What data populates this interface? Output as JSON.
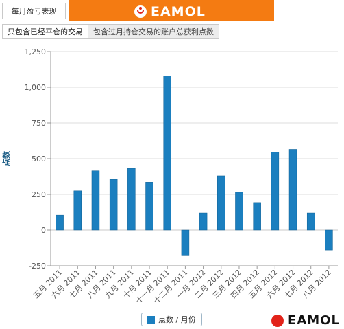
{
  "header": {
    "title": "每月盈亏表现",
    "brand": "EAMOL"
  },
  "tabs": [
    {
      "label": "只包含已经平仓的交易"
    },
    {
      "label": "包含过月持仓交易的账户总获利点数"
    }
  ],
  "footer": {
    "brand": "EAMOL"
  },
  "colors": {
    "bar": "#1b7fbf",
    "orange": "#f47b12",
    "logo_red": "#e2231a"
  },
  "chart_data": {
    "type": "bar",
    "ylabel": "点数",
    "ylim": [
      -250,
      1250
    ],
    "yticks": [
      -250,
      0,
      250,
      500,
      750,
      1000,
      1250
    ],
    "ytick_labels": [
      "-250",
      "0",
      "250",
      "500",
      "750",
      "1,000",
      "1,250"
    ],
    "grid": true,
    "legend_position": "bottom-center",
    "categories": [
      "五月 2011",
      "六月 2011",
      "七月 2011",
      "八月 2011",
      "九月 2011",
      "十月 2011",
      "十一月 2011",
      "十二月 2011",
      "一月 2012",
      "二月 2012",
      "三月 2012",
      "四月 2012",
      "五月 2012",
      "六月 2012",
      "七月 2012",
      "八月 2012"
    ],
    "series": [
      {
        "name": "点数 / 月份",
        "values": [
          105,
          275,
          415,
          355,
          432,
          335,
          1080,
          -175,
          120,
          380,
          265,
          193,
          545,
          565,
          120,
          -140
        ]
      }
    ]
  }
}
